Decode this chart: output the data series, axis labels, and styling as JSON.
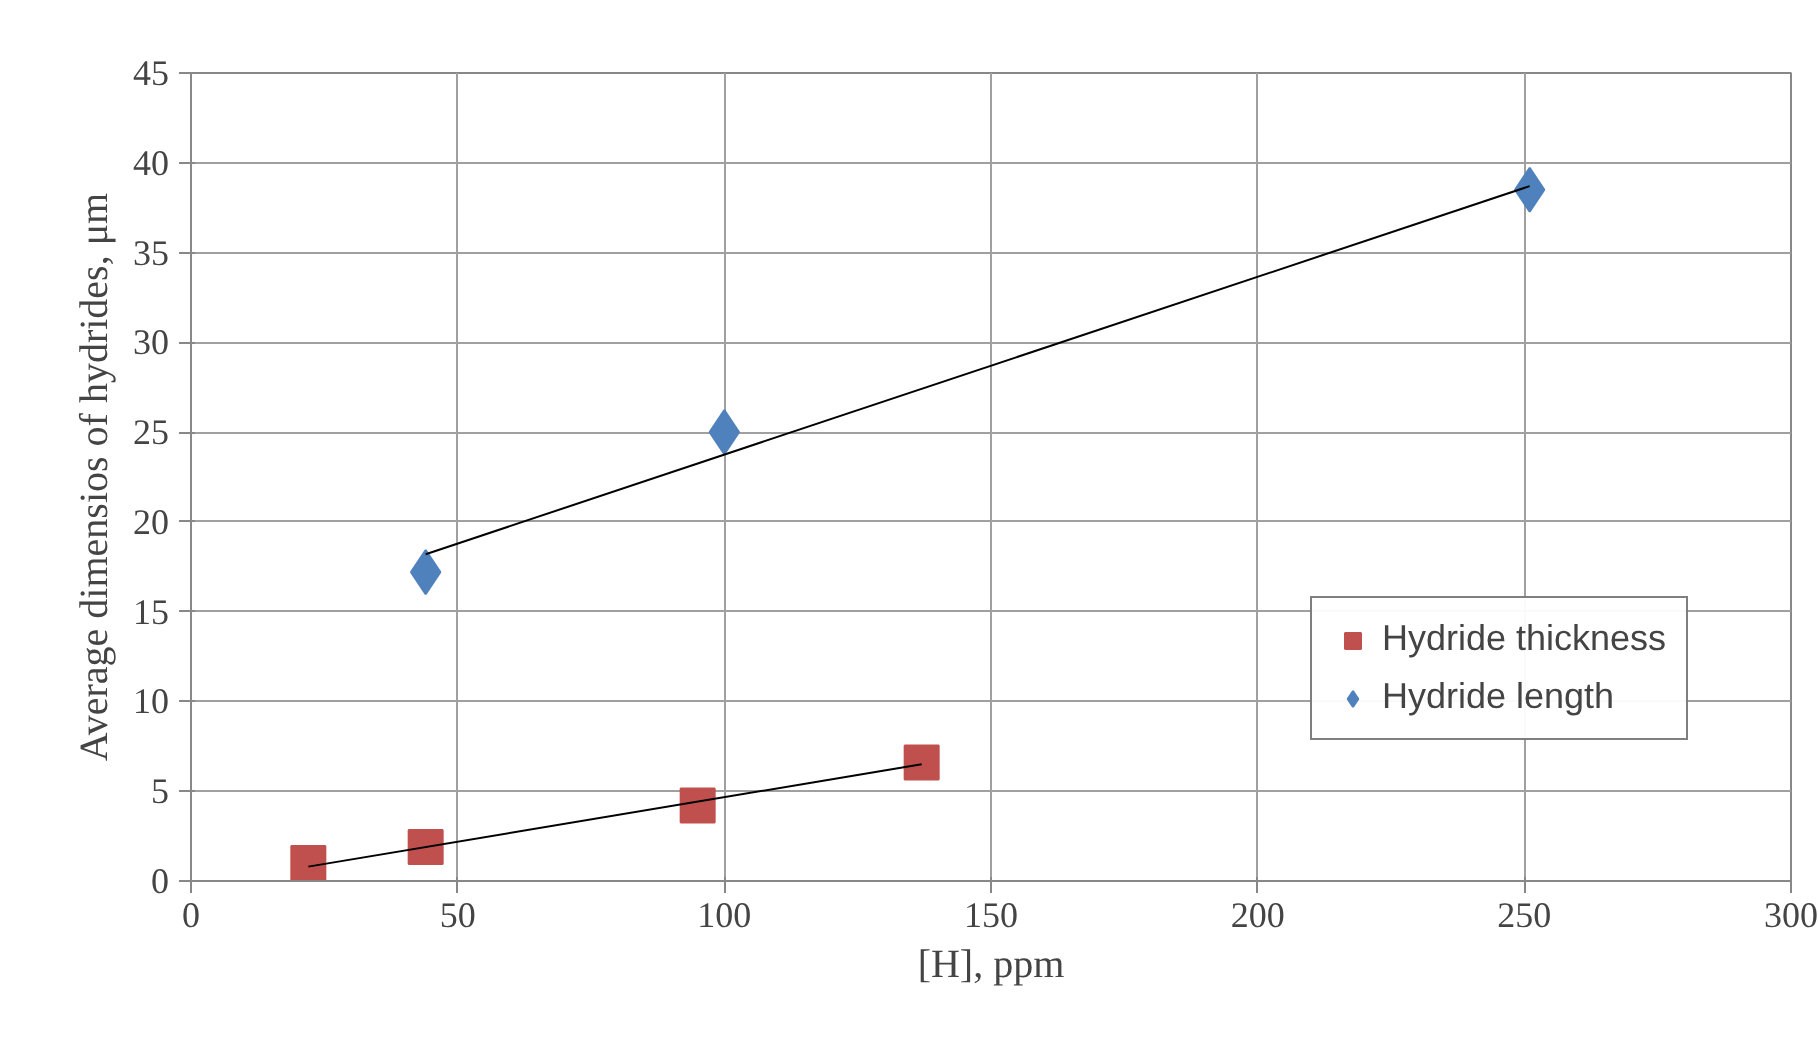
{
  "chart_data": {
    "type": "scatter",
    "xlabel": "[H], ppm",
    "ylabel": "Average dimensios of hydrides, μm",
    "xlim": [
      0,
      300
    ],
    "xticks": [
      0,
      50,
      100,
      150,
      200,
      250,
      300
    ],
    "ylim": [
      0,
      45
    ],
    "yticks": [
      0,
      5,
      10,
      15,
      20,
      25,
      30,
      35,
      40,
      45
    ],
    "grid": true,
    "legend": "right",
    "series": [
      {
        "name": "Hydride thickness",
        "color": "#c0504d",
        "marker": "square",
        "x": [
          22,
          44,
          95,
          137
        ],
        "values": [
          1.0,
          1.9,
          4.2,
          6.6
        ]
      },
      {
        "name": "Hydride length",
        "color": "#4f81bd",
        "marker": "diamond",
        "x": [
          44,
          100,
          251
        ],
        "values": [
          17.2,
          25.0,
          38.5
        ]
      },
      {
        "type": "line",
        "color": "#000000",
        "marker": "none",
        "x": [
          22,
          137
        ],
        "values": [
          0.8,
          6.5
        ]
      },
      {
        "type": "line",
        "color": "#000000",
        "marker": "none",
        "x": [
          44,
          251
        ],
        "values": [
          18.2,
          38.7
        ]
      }
    ]
  }
}
